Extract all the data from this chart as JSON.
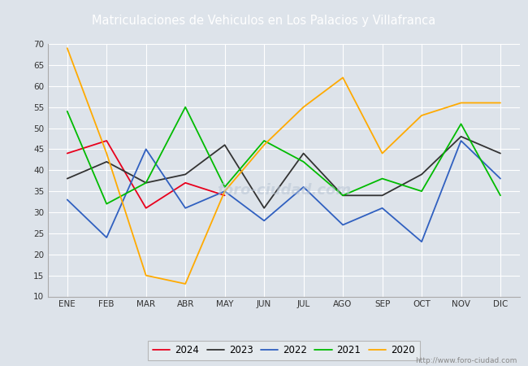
{
  "title": "Matriculaciones de Vehiculos en Los Palacios y Villafranca",
  "title_color": "#ffffff",
  "header_bg": "#4d7ebf",
  "months": [
    "ENE",
    "FEB",
    "MAR",
    "ABR",
    "MAY",
    "JUN",
    "JUL",
    "AGO",
    "SEP",
    "OCT",
    "NOV",
    "DIC"
  ],
  "series": {
    "2024": {
      "color": "#e8001c",
      "data": [
        44,
        47,
        31,
        37,
        34,
        null,
        null,
        null,
        null,
        null,
        null,
        null
      ]
    },
    "2023": {
      "color": "#333333",
      "data": [
        38,
        42,
        37,
        39,
        46,
        31,
        44,
        34,
        34,
        39,
        48,
        44
      ]
    },
    "2022": {
      "color": "#3060c0",
      "data": [
        33,
        24,
        45,
        31,
        35,
        28,
        36,
        27,
        31,
        23,
        47,
        38
      ]
    },
    "2021": {
      "color": "#00bb00",
      "data": [
        54,
        32,
        37,
        55,
        36,
        47,
        42,
        34,
        38,
        35,
        51,
        34
      ]
    },
    "2020": {
      "color": "#ffaa00",
      "data": [
        69,
        44,
        15,
        13,
        35,
        46,
        55,
        62,
        44,
        53,
        56,
        56
      ]
    }
  },
  "ylim": [
    10,
    70
  ],
  "yticks": [
    10,
    15,
    20,
    25,
    30,
    35,
    40,
    45,
    50,
    55,
    60,
    65,
    70
  ],
  "plot_bg": "#dde3ea",
  "grid_color": "#ffffff",
  "watermark": "http://www.foro-ciudad.com",
  "legend_order": [
    "2024",
    "2023",
    "2022",
    "2021",
    "2020"
  ]
}
